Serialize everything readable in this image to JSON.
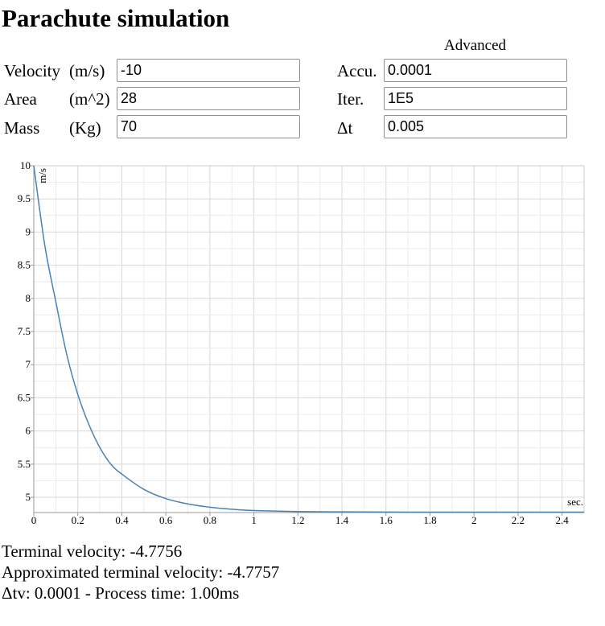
{
  "page": {
    "title": "Parachute simulation"
  },
  "form": {
    "advanced_label": "Advanced",
    "velocity": {
      "label": "Velocity",
      "unit": "(m/s)",
      "value": "-10"
    },
    "area": {
      "label": "Area",
      "unit": "(m^2)",
      "value": "28"
    },
    "mass": {
      "label": "Mass",
      "unit": "(Kg)",
      "value": "70"
    },
    "accu": {
      "label": "Accu.",
      "value": "0.0001"
    },
    "iter": {
      "label": "Iter.",
      "value": "1E5"
    },
    "dt": {
      "label": "Δt",
      "value": "0.005"
    }
  },
  "chart_data": {
    "type": "line",
    "title": "",
    "xlabel": "sec.",
    "ylabel": "m/s",
    "xlim": [
      0,
      2.5
    ],
    "ylim": [
      4.77,
      10
    ],
    "x_ticks": [
      "0",
      "0.2",
      "0.4",
      "0.6",
      "0.8",
      "1",
      "1.2",
      "1.4",
      "1.6",
      "1.8",
      "2",
      "2.2",
      "2.4"
    ],
    "y_ticks": [
      "5",
      "5.5",
      "6",
      "6.5",
      "7",
      "7.5",
      "8",
      "8.5",
      "9",
      "9.5",
      "10"
    ],
    "grid": true,
    "line_color": "#4682b4",
    "series": [
      {
        "x": [
          0,
          0.05,
          0.1,
          0.15,
          0.2,
          0.25,
          0.3,
          0.35,
          0.4,
          0.5,
          0.6,
          0.7,
          0.8,
          0.9,
          1.0,
          1.2,
          1.4,
          1.6,
          1.8,
          2.0,
          2.2,
          2.5
        ],
        "y": [
          10,
          8.8,
          7.95,
          7.15,
          6.55,
          6.1,
          5.75,
          5.5,
          5.35,
          5.12,
          4.98,
          4.9,
          4.85,
          4.82,
          4.8,
          4.785,
          4.78,
          4.777,
          4.776,
          4.776,
          4.776,
          4.776
        ]
      }
    ]
  },
  "results": {
    "terminal": "Terminal velocity: -4.7756",
    "approx": "Approximated terminal velocity: -4.7757",
    "stats": "Δtv: 0.0001 - Process time: 1.00ms"
  }
}
